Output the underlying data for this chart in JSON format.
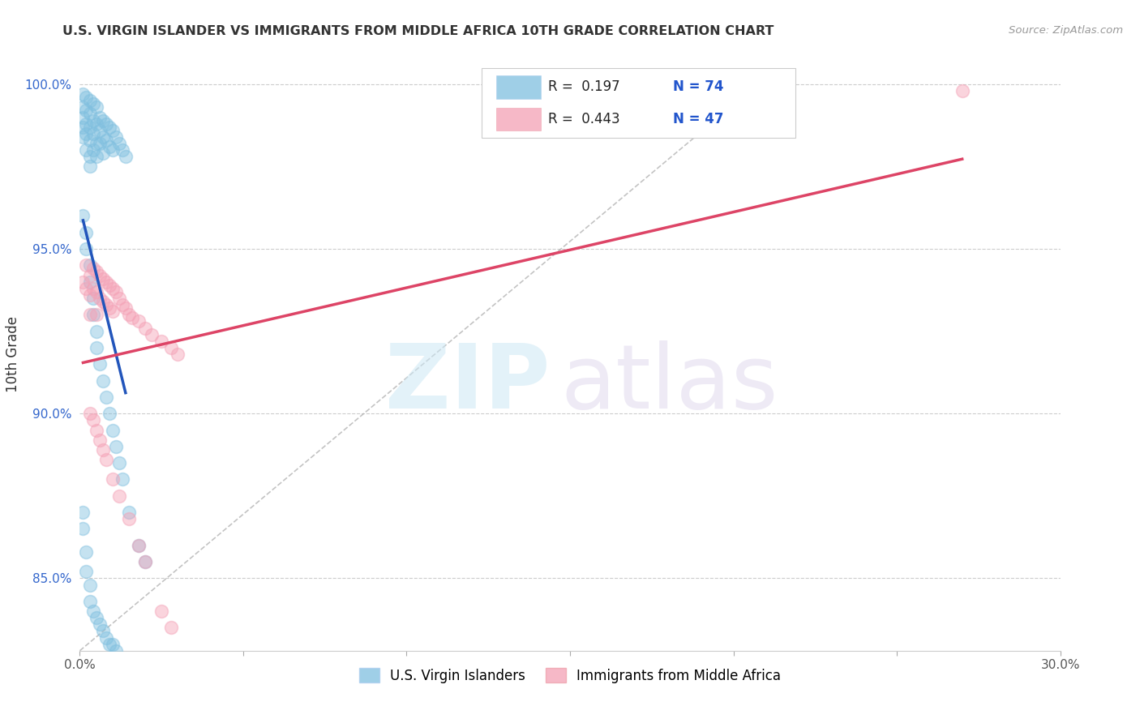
{
  "title": "U.S. VIRGIN ISLANDER VS IMMIGRANTS FROM MIDDLE AFRICA 10TH GRADE CORRELATION CHART",
  "source": "Source: ZipAtlas.com",
  "ylabel": "10th Grade",
  "xlim": [
    0.0,
    0.3
  ],
  "ylim": [
    0.828,
    1.008
  ],
  "xticks": [
    0.0,
    0.05,
    0.1,
    0.15,
    0.2,
    0.25,
    0.3
  ],
  "xtick_labels": [
    "0.0%",
    "",
    "",
    "",
    "",
    "",
    "30.0%"
  ],
  "yticks": [
    0.85,
    0.9,
    0.95,
    1.0
  ],
  "ytick_labels": [
    "85.0%",
    "90.0%",
    "95.0%",
    "100.0%"
  ],
  "blue_color": "#7fbfdf",
  "pink_color": "#f4a0b5",
  "blue_line_color": "#2255bb",
  "pink_line_color": "#dd4466",
  "legend_R_blue": "R =  0.197",
  "legend_N_blue": "N = 74",
  "legend_R_pink": "R =  0.443",
  "legend_N_pink": "N = 47",
  "legend_label_blue": "U.S. Virgin Islanders",
  "legend_label_pink": "Immigrants from Middle Africa",
  "blue_scatter_x": [
    0.001,
    0.001,
    0.001,
    0.001,
    0.001,
    0.002,
    0.002,
    0.002,
    0.002,
    0.002,
    0.003,
    0.003,
    0.003,
    0.003,
    0.003,
    0.003,
    0.004,
    0.004,
    0.004,
    0.004,
    0.005,
    0.005,
    0.005,
    0.005,
    0.006,
    0.006,
    0.006,
    0.007,
    0.007,
    0.007,
    0.008,
    0.008,
    0.009,
    0.009,
    0.01,
    0.01,
    0.011,
    0.012,
    0.013,
    0.014,
    0.001,
    0.002,
    0.002,
    0.003,
    0.003,
    0.004,
    0.004,
    0.005,
    0.005,
    0.006,
    0.007,
    0.008,
    0.009,
    0.01,
    0.011,
    0.012,
    0.013,
    0.015,
    0.018,
    0.02,
    0.001,
    0.001,
    0.002,
    0.002,
    0.003,
    0.003,
    0.004,
    0.005,
    0.006,
    0.007,
    0.008,
    0.009,
    0.01,
    0.011
  ],
  "blue_scatter_y": [
    0.997,
    0.993,
    0.99,
    0.987,
    0.984,
    0.996,
    0.992,
    0.988,
    0.985,
    0.98,
    0.995,
    0.991,
    0.987,
    0.983,
    0.978,
    0.975,
    0.994,
    0.989,
    0.985,
    0.98,
    0.993,
    0.988,
    0.982,
    0.978,
    0.99,
    0.986,
    0.982,
    0.989,
    0.984,
    0.979,
    0.988,
    0.983,
    0.987,
    0.981,
    0.986,
    0.98,
    0.984,
    0.982,
    0.98,
    0.978,
    0.96,
    0.955,
    0.95,
    0.945,
    0.94,
    0.935,
    0.93,
    0.925,
    0.92,
    0.915,
    0.91,
    0.905,
    0.9,
    0.895,
    0.89,
    0.885,
    0.88,
    0.87,
    0.86,
    0.855,
    0.87,
    0.865,
    0.858,
    0.852,
    0.848,
    0.843,
    0.84,
    0.838,
    0.836,
    0.834,
    0.832,
    0.83,
    0.83,
    0.828
  ],
  "pink_scatter_x": [
    0.001,
    0.002,
    0.002,
    0.003,
    0.003,
    0.003,
    0.004,
    0.004,
    0.005,
    0.005,
    0.005,
    0.006,
    0.006,
    0.007,
    0.007,
    0.008,
    0.008,
    0.009,
    0.009,
    0.01,
    0.01,
    0.011,
    0.012,
    0.013,
    0.014,
    0.015,
    0.016,
    0.018,
    0.02,
    0.022,
    0.025,
    0.028,
    0.03,
    0.003,
    0.004,
    0.005,
    0.006,
    0.007,
    0.008,
    0.01,
    0.012,
    0.015,
    0.018,
    0.02,
    0.025,
    0.028,
    0.27
  ],
  "pink_scatter_y": [
    0.94,
    0.945,
    0.938,
    0.942,
    0.936,
    0.93,
    0.944,
    0.938,
    0.943,
    0.937,
    0.93,
    0.942,
    0.935,
    0.941,
    0.934,
    0.94,
    0.933,
    0.939,
    0.932,
    0.938,
    0.931,
    0.937,
    0.935,
    0.933,
    0.932,
    0.93,
    0.929,
    0.928,
    0.926,
    0.924,
    0.922,
    0.92,
    0.918,
    0.9,
    0.898,
    0.895,
    0.892,
    0.889,
    0.886,
    0.88,
    0.875,
    0.868,
    0.86,
    0.855,
    0.84,
    0.835,
    0.998
  ],
  "ref_line_x": [
    0.0,
    0.21
  ],
  "ref_line_y": [
    0.828,
    1.002
  ]
}
